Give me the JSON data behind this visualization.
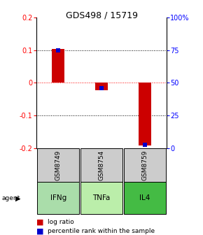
{
  "title": "GDS498 / 15719",
  "samples": [
    "GSM8749",
    "GSM8754",
    "GSM8759"
  ],
  "agents": [
    "IFNg",
    "TNFa",
    "IL4"
  ],
  "log_ratios": [
    0.103,
    -0.022,
    -0.192
  ],
  "percentile_ranks": [
    75.0,
    46.0,
    2.5
  ],
  "left_ylim": [
    -0.2,
    0.2
  ],
  "right_ylim": [
    0,
    100
  ],
  "left_yticks": [
    -0.2,
    -0.1,
    0.0,
    0.1,
    0.2
  ],
  "right_yticks": [
    0,
    25,
    50,
    75,
    100
  ],
  "right_yticklabels": [
    "0",
    "25",
    "50",
    "75",
    "100%"
  ],
  "hline_values": [
    -0.1,
    0.1
  ],
  "hline_red_value": 0.0,
  "bar_color": "#cc0000",
  "point_color": "#0000cc",
  "agent_colors": [
    "#aaddaa",
    "#bbeeaa",
    "#44bb44"
  ],
  "sample_bg_color": "#cccccc",
  "title_fontsize": 9,
  "tick_fontsize": 7,
  "legend_fontsize": 6.5,
  "bar_width": 0.3,
  "point_size": 25
}
